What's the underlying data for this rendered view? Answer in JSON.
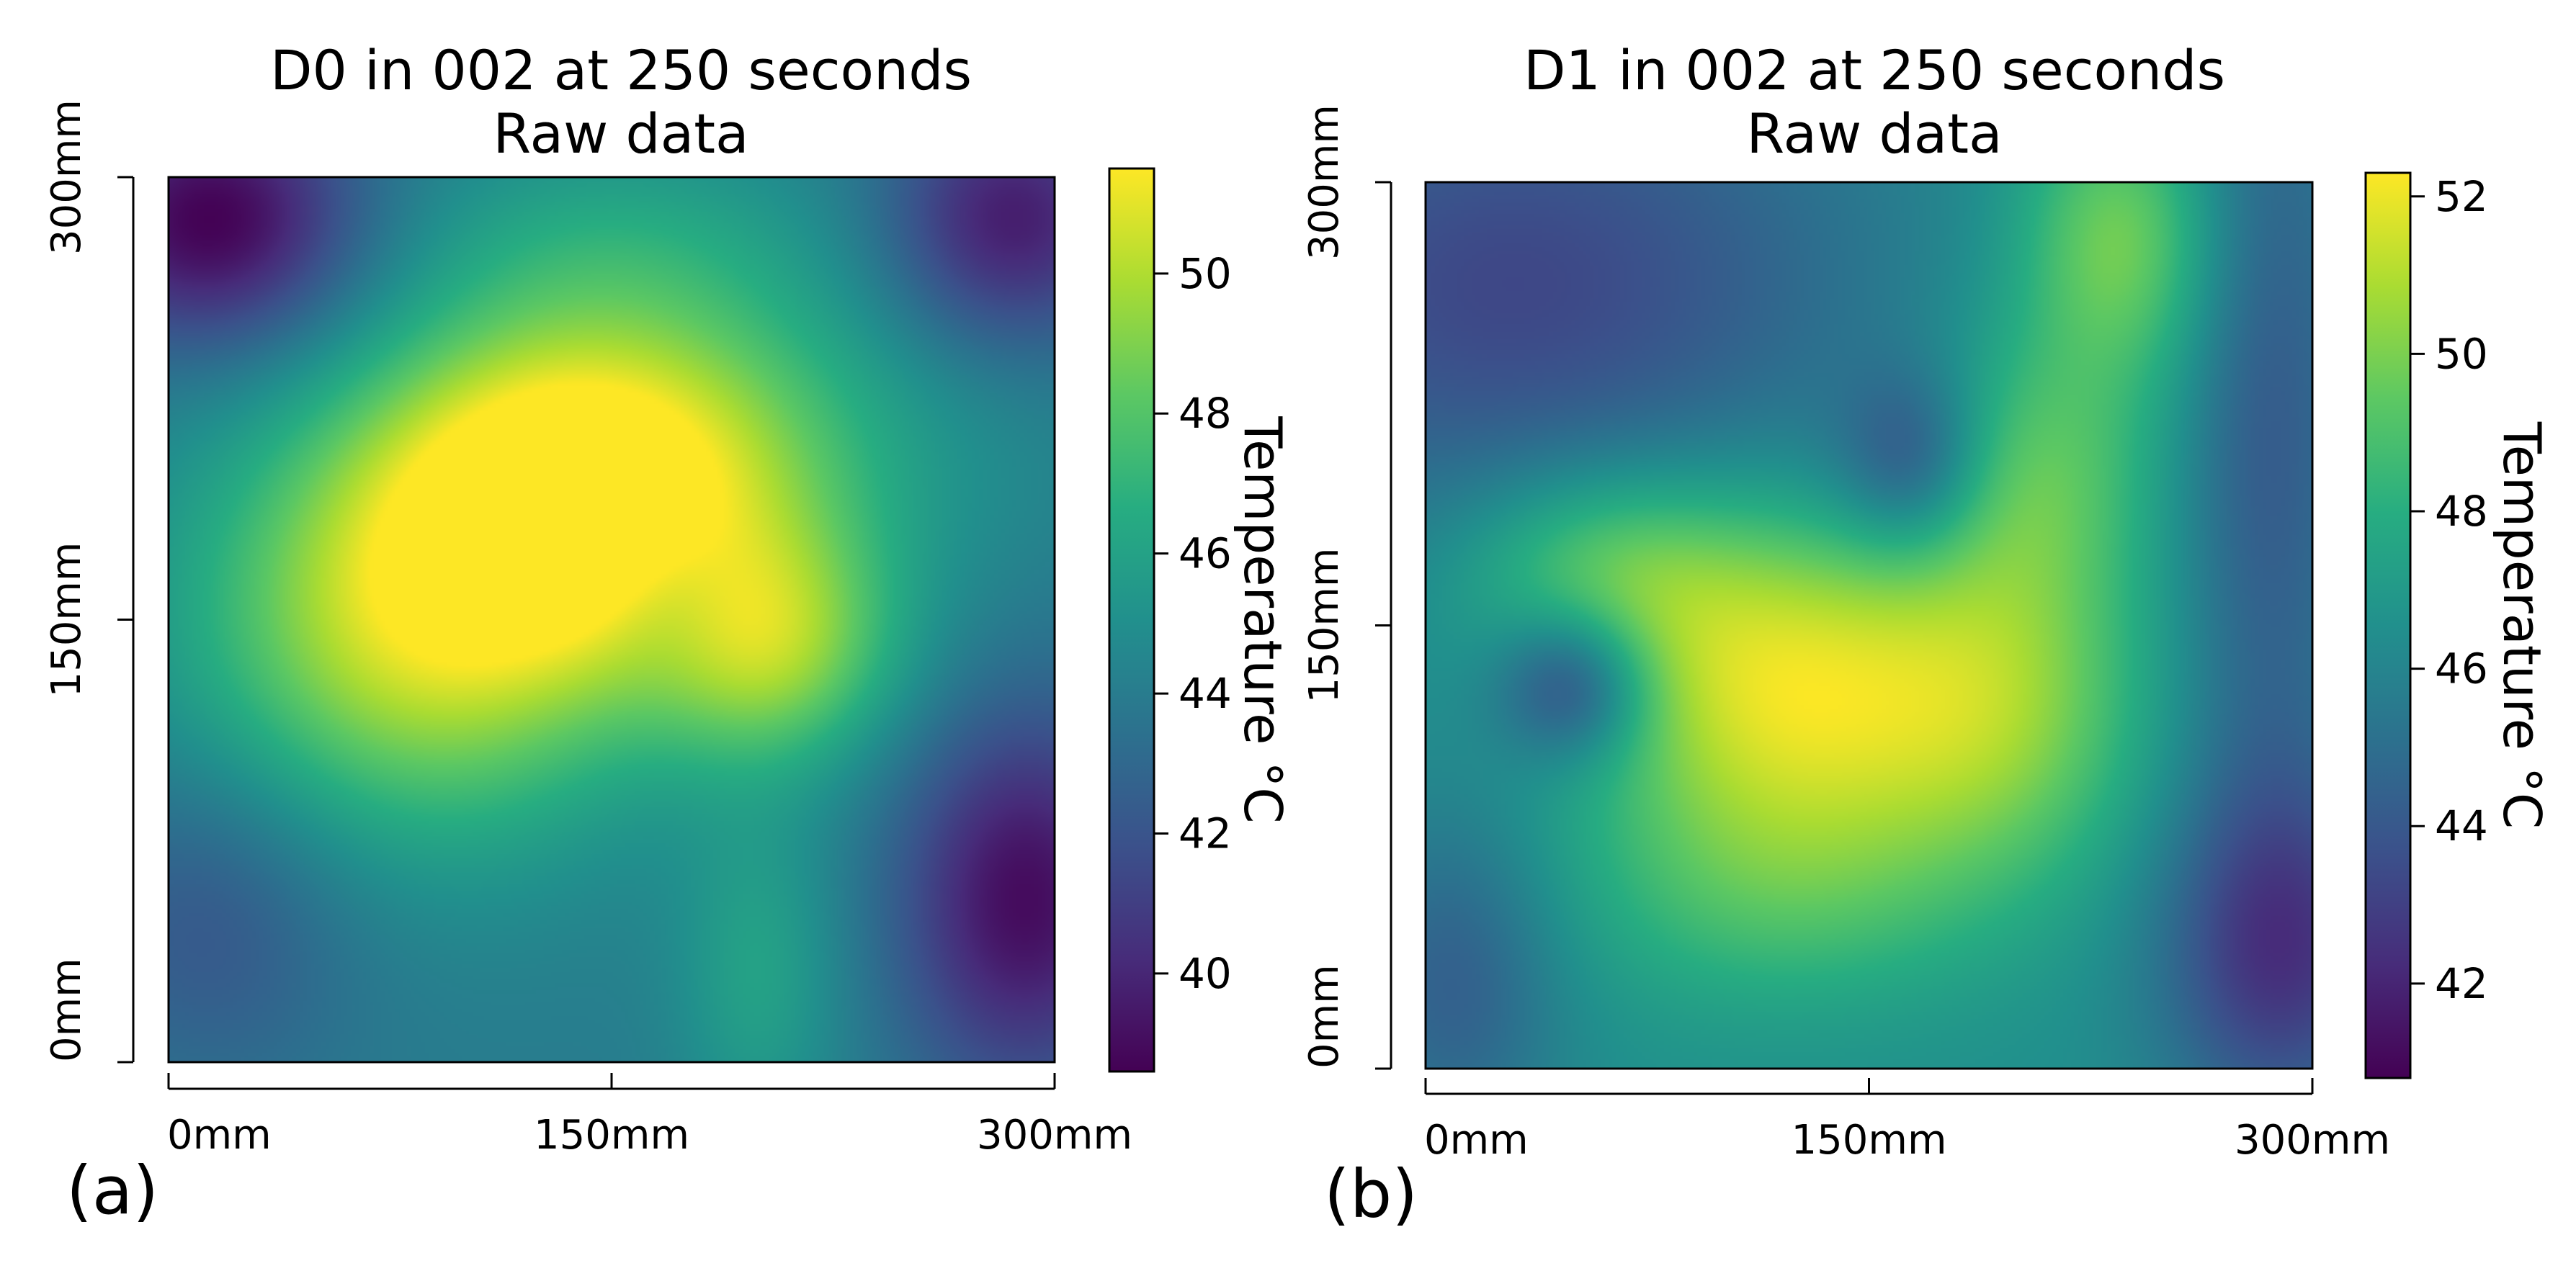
{
  "chart_data": [
    {
      "type": "heatmap",
      "panel_label": "(a)",
      "title_line1": "D0 in 002 at 250 seconds",
      "title_line2": "Raw data",
      "x_ticks": [
        "0mm",
        "150mm",
        "300mm"
      ],
      "y_ticks": [
        "0mm",
        "150mm",
        "300mm"
      ],
      "xlim": [
        0,
        300
      ],
      "ylim": [
        0,
        300
      ],
      "colorbar": {
        "label": "Temperature °C",
        "min": 38.6,
        "max": 51.5,
        "ticks": [
          40,
          42,
          44,
          46,
          48,
          50
        ],
        "tick_labels": [
          "40",
          "42",
          "44",
          "46",
          "48",
          "50"
        ]
      },
      "background": 44.0,
      "hotspots": [
        {
          "x": 140,
          "y": 195,
          "sx": 50,
          "sy": 40,
          "amp": 6.5
        },
        {
          "x": 85,
          "y": 145,
          "sx": 55,
          "sy": 50,
          "amp": 6.0
        },
        {
          "x": 205,
          "y": 140,
          "sx": 30,
          "sy": 28,
          "amp": 4.5
        },
        {
          "x": 175,
          "y": 210,
          "sx": 70,
          "sy": 45,
          "amp": 2.5
        },
        {
          "x": 170,
          "y": 160,
          "sx": 18,
          "sy": 20,
          "amp": -1.5
        },
        {
          "x": 200,
          "y": 30,
          "sx": 20,
          "sy": 40,
          "amp": 2.0
        },
        {
          "x": 150,
          "y": 280,
          "sx": 50,
          "sy": 25,
          "amp": 1.5
        },
        {
          "x": 15,
          "y": 285,
          "sx": 35,
          "sy": 30,
          "amp": -5.5
        },
        {
          "x": 285,
          "y": 285,
          "sx": 30,
          "sy": 30,
          "amp": -4.5
        },
        {
          "x": 290,
          "y": 55,
          "sx": 30,
          "sy": 45,
          "amp": -5.0
        },
        {
          "x": 15,
          "y": 50,
          "sx": 35,
          "sy": 40,
          "amp": -2.0
        }
      ]
    },
    {
      "type": "heatmap",
      "panel_label": "(b)",
      "title_line1": "D1 in 002 at 250 seconds",
      "title_line2": "Raw data",
      "x_ticks": [
        "0mm",
        "150mm",
        "300mm"
      ],
      "y_ticks": [
        "0mm",
        "150mm",
        "300mm"
      ],
      "xlim": [
        0,
        300
      ],
      "ylim": [
        0,
        300
      ],
      "colorbar": {
        "label": "Temperature °C",
        "min": 40.8,
        "max": 52.3,
        "ticks": [
          42,
          44,
          46,
          48,
          50,
          52
        ],
        "tick_labels": [
          "42",
          "44",
          "46",
          "48",
          "50",
          "52"
        ]
      },
      "background": 46.5,
      "hotspots": [
        {
          "x": 120,
          "y": 130,
          "sx": 45,
          "sy": 40,
          "amp": 5.2
        },
        {
          "x": 195,
          "y": 120,
          "sx": 35,
          "sy": 40,
          "amp": 3.2
        },
        {
          "x": 205,
          "y": 200,
          "sx": 30,
          "sy": 35,
          "amp": 2.8
        },
        {
          "x": 60,
          "y": 170,
          "sx": 35,
          "sy": 25,
          "amp": 2.8
        },
        {
          "x": 120,
          "y": 60,
          "sx": 50,
          "sy": 30,
          "amp": 2.0
        },
        {
          "x": 235,
          "y": 280,
          "sx": 25,
          "sy": 35,
          "amp": 3.5
        },
        {
          "x": 50,
          "y": 130,
          "sx": 18,
          "sy": 18,
          "amp": -3.8
        },
        {
          "x": 165,
          "y": 205,
          "sx": 18,
          "sy": 22,
          "amp": -3.0
        },
        {
          "x": 30,
          "y": 265,
          "sx": 85,
          "sy": 60,
          "amp": -3.2
        },
        {
          "x": 285,
          "y": 220,
          "sx": 22,
          "sy": 120,
          "amp": -2.4
        },
        {
          "x": 290,
          "y": 40,
          "sx": 30,
          "sy": 40,
          "amp": -3.5
        },
        {
          "x": 10,
          "y": 30,
          "sx": 25,
          "sy": 40,
          "amp": -2.2
        }
      ]
    }
  ]
}
